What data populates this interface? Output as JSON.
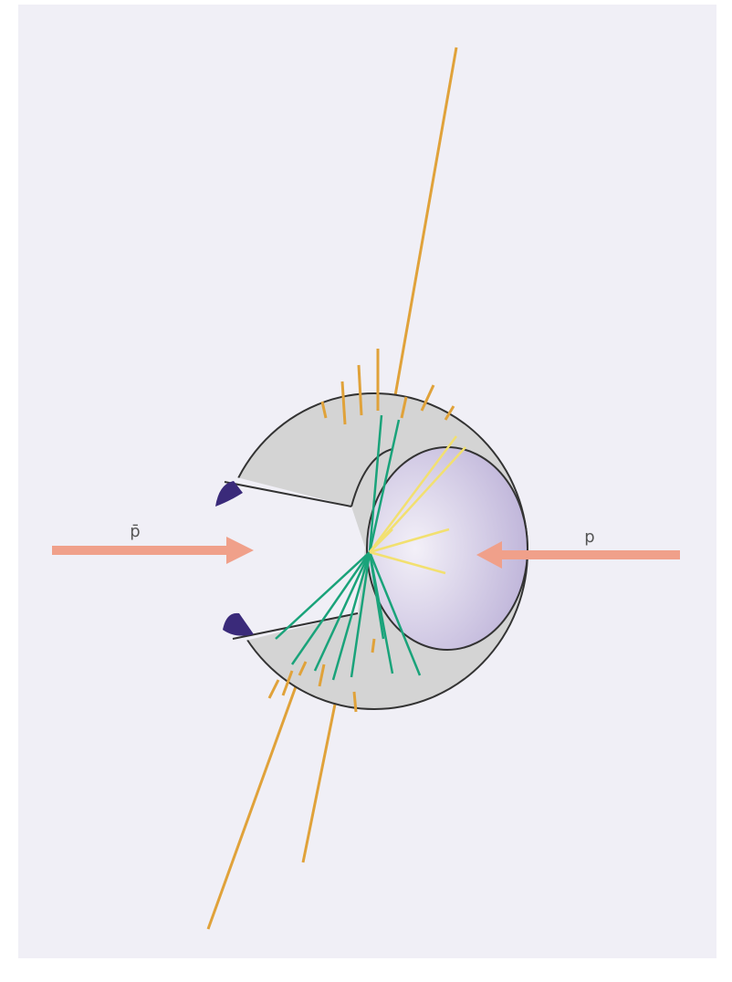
{
  "beams": [
    {
      "label": "p̄"
    },
    {
      "label": "p"
    }
  ]
}
